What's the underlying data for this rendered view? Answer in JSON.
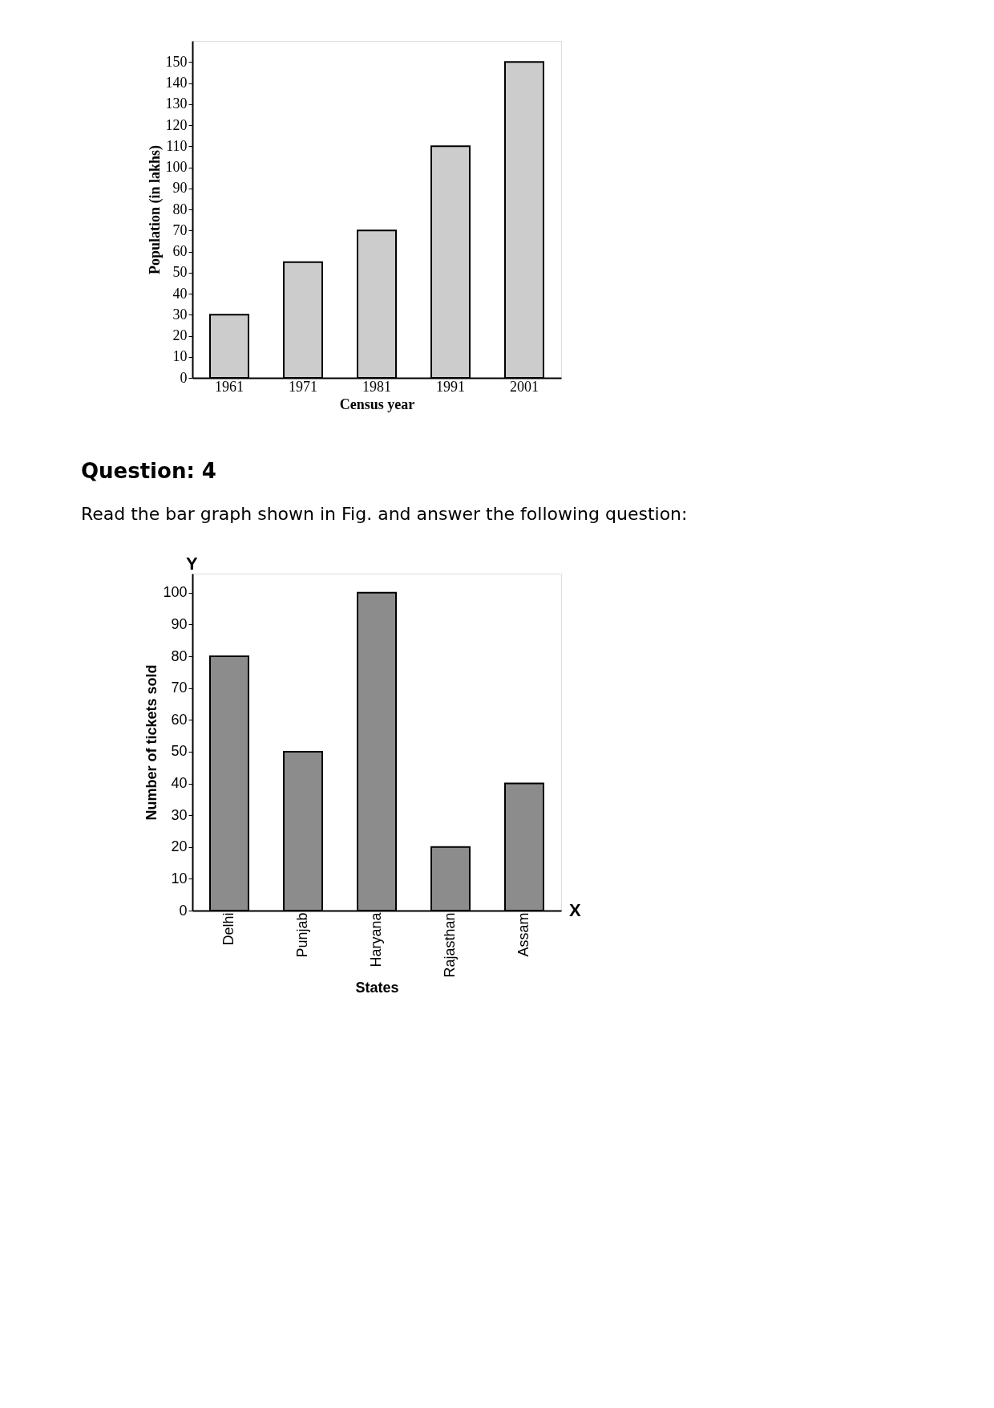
{
  "chart_data": [
    {
      "type": "bar",
      "categories": [
        "1961",
        "1971",
        "1981",
        "1991",
        "2001"
      ],
      "values": [
        30,
        55,
        70,
        110,
        150
      ],
      "color": "#cccccc",
      "ylim": [
        0,
        160
      ],
      "yticks": [
        0,
        10,
        20,
        30,
        40,
        50,
        60,
        70,
        80,
        90,
        100,
        110,
        120,
        130,
        140,
        150
      ],
      "xlabel": "Census year",
      "ylabel": "Population (in lakhs)",
      "grid": false
    },
    {
      "type": "bar",
      "title": "Question: 4",
      "subtitle": "Read the bar graph shown in Fig. and answer the following question:",
      "categories": [
        "Delhi",
        "Punjab",
        "Haryana",
        "Rajasthan",
        "Assam"
      ],
      "values": [
        80,
        50,
        100,
        20,
        40
      ],
      "color": "#8c8c8c",
      "ylim": [
        0,
        106
      ],
      "yticks": [
        0,
        10,
        20,
        30,
        40,
        50,
        60,
        70,
        80,
        90,
        100
      ],
      "xlabel": "States",
      "ylabel": "Number of tickets sold",
      "grid": false,
      "annotations": [
        "Y",
        "X"
      ]
    }
  ]
}
